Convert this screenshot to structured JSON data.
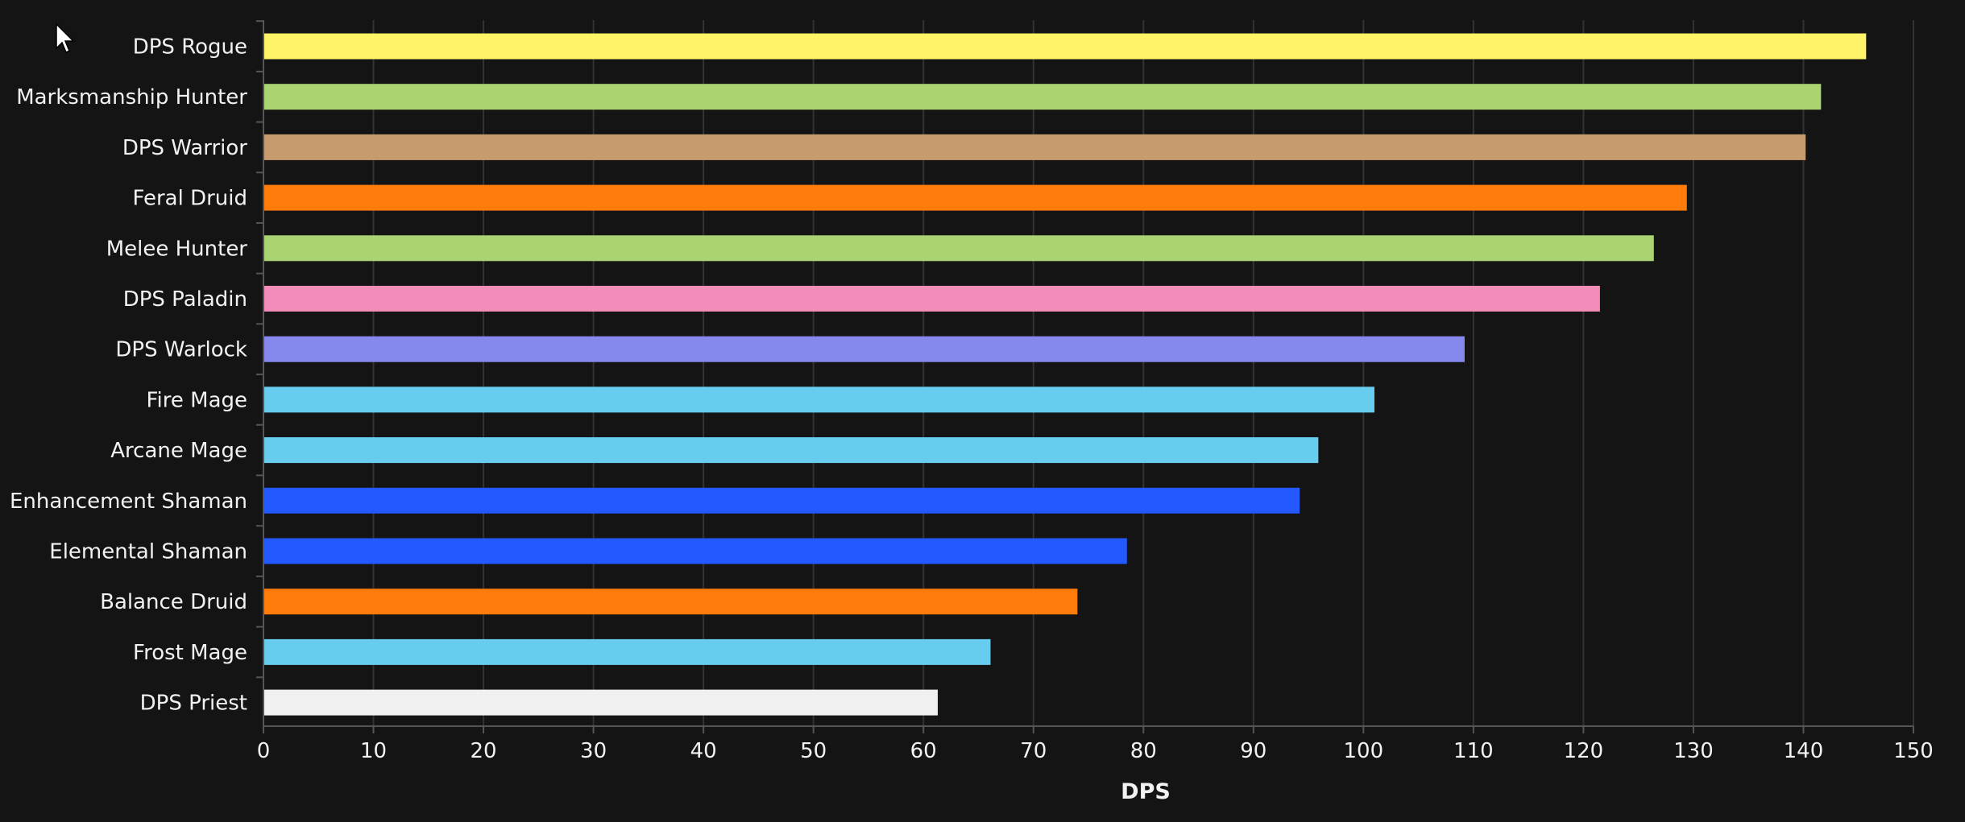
{
  "chart_data": {
    "type": "bar",
    "orientation": "horizontal",
    "title": "",
    "xlabel": "DPS",
    "ylabel": "",
    "xlim": [
      0,
      150
    ],
    "xticks": [
      0,
      10,
      20,
      30,
      40,
      50,
      60,
      70,
      80,
      90,
      100,
      110,
      120,
      130,
      140,
      150
    ],
    "grid": "vertical",
    "background": "#141414",
    "categories": [
      "DPS Rogue",
      "Marksmanship Hunter",
      "DPS Warrior",
      "Feral Druid",
      "Melee Hunter",
      "DPS Paladin",
      "DPS Warlock",
      "Fire Mage",
      "Arcane Mage",
      "Enhancement Shaman",
      "Elemental Shaman",
      "Balance Druid",
      "Frost Mage",
      "DPS Priest"
    ],
    "values": [
      145.7,
      141.6,
      140.2,
      129.4,
      126.4,
      121.5,
      109.2,
      101.0,
      95.9,
      94.2,
      78.5,
      74.0,
      66.1,
      61.3
    ],
    "colors": [
      "#fff468",
      "#aad372",
      "#c69b6d",
      "#ff7c0a",
      "#aad372",
      "#f48cba",
      "#8788ee",
      "#68ccef",
      "#68ccef",
      "#2459ff",
      "#2459ff",
      "#ff7c0a",
      "#68ccef",
      "#f0f0f0"
    ]
  }
}
